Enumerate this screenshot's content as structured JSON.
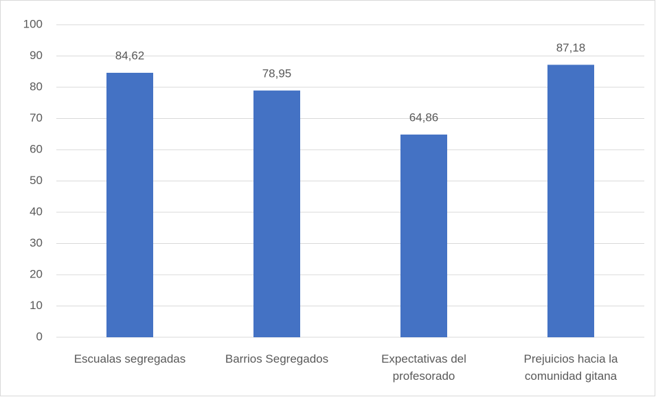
{
  "chart_data": {
    "type": "bar",
    "categories": [
      "Escualas segregadas",
      "Barrios Segregados",
      "Expectativas del profesorado",
      "Prejuicios hacia la comunidad gitana"
    ],
    "values": [
      84.62,
      78.95,
      64.86,
      87.18
    ],
    "value_labels": [
      "84,62",
      "78,95",
      "64,86",
      "87,18"
    ],
    "color": "#4472c4",
    "ylim": [
      0,
      100
    ],
    "yticks": [
      0,
      10,
      20,
      30,
      40,
      50,
      60,
      70,
      80,
      90,
      100
    ],
    "grid": true
  }
}
